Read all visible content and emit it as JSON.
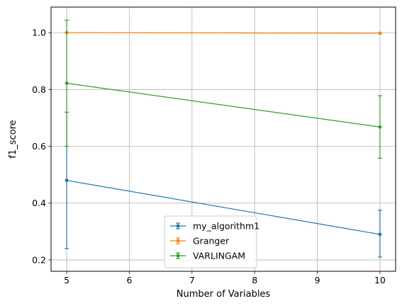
{
  "chart_data": {
    "type": "line",
    "title": "",
    "xlabel": "Number of Variables",
    "ylabel": "f1_score",
    "xlim": [
      4.75,
      10.25
    ],
    "ylim": [
      0.16,
      1.09
    ],
    "xticks": [
      5,
      6,
      7,
      8,
      9,
      10
    ],
    "yticks": [
      0.2,
      0.4,
      0.6,
      0.8,
      1.0
    ],
    "xtick_labels": [
      "5",
      "6",
      "7",
      "8",
      "9",
      "10"
    ],
    "ytick_labels": [
      "0.2",
      "0.4",
      "0.6",
      "0.8",
      "1.0"
    ],
    "grid": true,
    "legend_position": "bottom-center",
    "x": [
      5,
      10
    ],
    "series": [
      {
        "name": "my_algorithm1",
        "color": "#1f77b4",
        "values": [
          0.48,
          0.29
        ],
        "err_low": [
          0.24,
          0.21
        ],
        "err_high": [
          0.72,
          0.375
        ]
      },
      {
        "name": "Granger",
        "color": "#ff7f0e",
        "values": [
          1.0,
          0.998
        ],
        "err_low": [
          1.0,
          0.998
        ],
        "err_high": [
          1.0,
          0.998
        ]
      },
      {
        "name": "VARLINGAM",
        "color": "#2ca02c",
        "values": [
          0.822,
          0.668
        ],
        "err_low": [
          0.6,
          0.558
        ],
        "err_high": [
          1.044,
          0.778
        ]
      }
    ]
  }
}
